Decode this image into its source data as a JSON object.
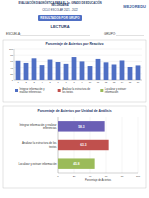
{
  "header": {
    "title": "EVALUACIÓN DIAGNÓSTICA PARA EL 1o. GRADO DE EDUCACIÓN SECUNDARIA",
    "cycle": "CICLO ESCOLAR 2021 - 2022",
    "logo": "MEJOREDU",
    "badge": "RESULTADOS POR GRUPO",
    "subject": "LECTURA",
    "school_label": "ESCUELA:",
    "group_label": "GRUPO:"
  },
  "chart_data": [
    {
      "type": "bar",
      "title": "Porcentaje de Aciertos por Reactivo",
      "categories": [
        "1",
        "2",
        "3",
        "4",
        "5",
        "6",
        "7",
        "8",
        "9",
        "10",
        "11",
        "12",
        "13",
        "14",
        "15",
        "16"
      ],
      "values": [
        62,
        55,
        70,
        48,
        66,
        58,
        52,
        74,
        60,
        45,
        68,
        57,
        50,
        63,
        42,
        47
      ],
      "color": "#4f6fc4",
      "ylim": [
        0,
        100
      ],
      "yticks": [
        0,
        20,
        40,
        60,
        80,
        100
      ],
      "grid": true,
      "annotations": [
        "Integrar información y realizar inferencias",
        "Analizar la estructura de los textos",
        "Localizar y extraer información"
      ],
      "annotation_colors": [
        "#4f6fc4",
        "#c0504d",
        "#9bbb59"
      ]
    },
    {
      "type": "bar",
      "orientation": "horizontal",
      "title": "Porcentaje de Aciertos por Unidad de Análisis",
      "categories": [
        "Integrar información y realizar inferencias",
        "Analizar la estructura de los textos",
        "Localizar y extraer información"
      ],
      "values": [
        58.3,
        63.3,
        45.8
      ],
      "colors": [
        "#6a5fb5",
        "#c0504d",
        "#9bbb59"
      ],
      "xlim": [
        0,
        100
      ],
      "xticks": [
        0,
        20,
        40,
        60,
        80,
        100
      ],
      "x_label": "Porcentaje de Aciertos",
      "data_labels": true,
      "grid": true
    }
  ]
}
